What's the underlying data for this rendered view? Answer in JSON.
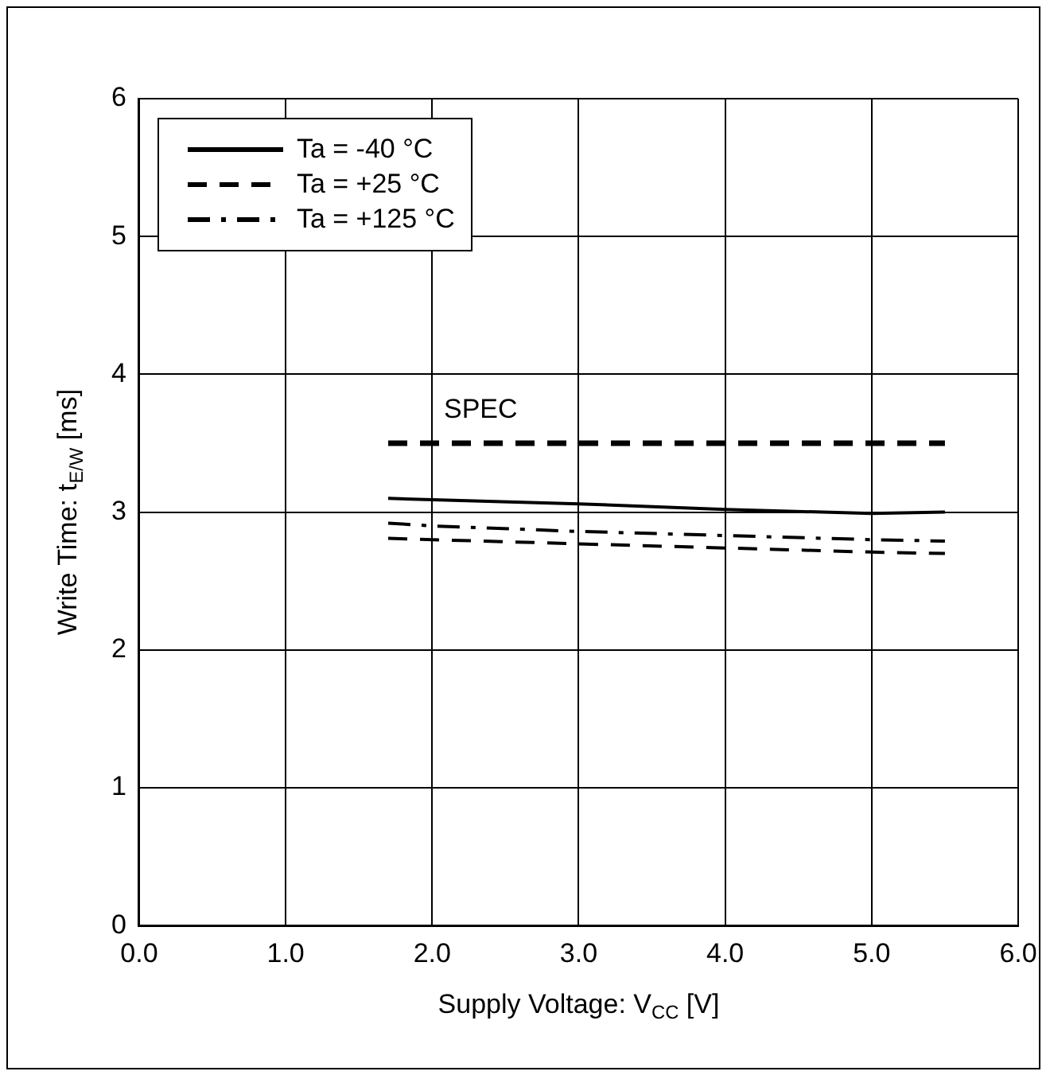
{
  "chart_data": {
    "type": "line",
    "xlabel": "Supply Voltage: V$_{CC}$ [V]",
    "ylabel": "Write Time: t$_{E/W}$ [ms]",
    "xlim": [
      0,
      6
    ],
    "xticks": [
      {
        "value": 0,
        "label": "0.0"
      },
      {
        "value": 1,
        "label": "1.0"
      },
      {
        "value": 2,
        "label": "2.0"
      },
      {
        "value": 3,
        "label": "3.0"
      },
      {
        "value": 4,
        "label": "4.0"
      },
      {
        "value": 5,
        "label": "5.0"
      },
      {
        "value": 6,
        "label": "6.0"
      }
    ],
    "ylim": [
      0,
      6
    ],
    "yticks": [
      0,
      1,
      2,
      3,
      4,
      5,
      6
    ],
    "grid": true,
    "legend": "top left",
    "marker": "none",
    "x": [
      1.7,
      2,
      3,
      4,
      5,
      5.5
    ],
    "series": [
      {
        "name": "Ta = -40 °C",
        "color": "#000000",
        "line_style": "solid",
        "values": [
          3.1,
          3.09,
          3.06,
          3.02,
          2.99,
          3.0
        ]
      },
      {
        "name": "Ta = +25 °C",
        "color": "#000000",
        "line_style": "dashed",
        "values": [
          2.81,
          2.8,
          2.77,
          2.74,
          2.71,
          2.7
        ]
      },
      {
        "name": "Ta = +125 °C",
        "color": "#000000",
        "line_style": "dashdot",
        "values": [
          2.92,
          2.9,
          2.86,
          2.83,
          2.8,
          2.79
        ]
      }
    ],
    "ref_lines": [
      {
        "axis": "y",
        "value": 3.5,
        "label": "SPEC",
        "color": "#000000",
        "line_style": "dashed"
      }
    ]
  }
}
